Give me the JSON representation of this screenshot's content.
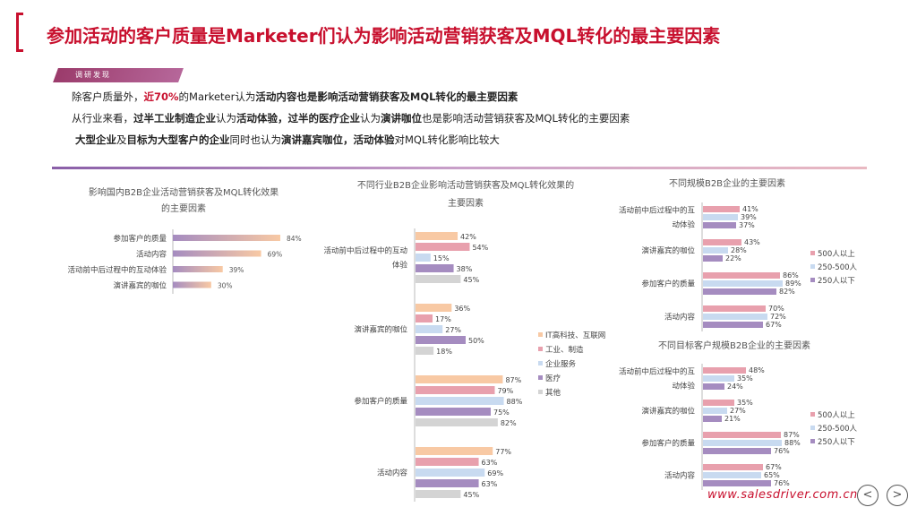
{
  "title": "参加活动的客户质量是Marketer们认为影响活动营销获客及MQL转化的最主要因素",
  "badge": "调研发现",
  "intro": {
    "l1a": "除客户质量外，",
    "l1b": "近70%",
    "l1c": "的Marketer认为",
    "l1d": "活动内容也是影响活动营销获客及MQL转化的最主要因素",
    "l2a": "从行业来看，",
    "l2b": "过半工业制造企业",
    "l2c": "认为",
    "l2d": "活动体验",
    "l2e": "，",
    "l2f": "过半的医疗企业",
    "l2g": "认为",
    "l2h": "演讲咖位",
    "l2i": "也是影响活动营销获客及MQL转化的主要因素",
    "l3a": "大型企业",
    "l3b": "及",
    "l3c": "目标为大型客户的企业",
    "l3d": "同时也认为",
    "l3e": "演讲嘉宾咖位，活动体验",
    "l3f": "对MQL转化影响比较大"
  },
  "footer_url": "www.salesdriver.com.cn",
  "nav": {
    "prev": "<",
    "next": ">"
  },
  "colors": {
    "title_red": "#c8102e",
    "purple": "#a58cc0",
    "pink": "#e8a0ad",
    "light_blue": "#c8daf0",
    "peach": "#f8c9a4",
    "gray": "#d4d4d4"
  },
  "chart_data": [
    {
      "type": "bar",
      "orientation": "horizontal",
      "title": [
        "影响国内B2B企业活动营销获客及MQL转化效果",
        "的主要因素"
      ],
      "categories": [
        "参加客户的质量",
        "活动内容",
        "活动前中后过程中的互动体验",
        "演讲嘉宾的咖位"
      ],
      "values": [
        84,
        69,
        39,
        30
      ],
      "value_labels": [
        "84%",
        "69%",
        "39%",
        "30%"
      ]
    },
    {
      "type": "bar",
      "orientation": "horizontal",
      "title": [
        "不同行业B2B企业影响活动营销获客及MQL转化效果的",
        "主要因素"
      ],
      "categories": [
        [
          "活动前中后过程中的互动",
          "体验"
        ],
        [
          "演讲嘉宾的咖位"
        ],
        [
          "参加客户的质量"
        ],
        [
          "活动内容"
        ]
      ],
      "series": [
        {
          "name": "IT高科技、互联网",
          "color": "#f8c9a4",
          "values": [
            42,
            36,
            87,
            77
          ]
        },
        {
          "name": "工业、制造",
          "color": "#e8a0ad",
          "values": [
            54,
            17,
            79,
            63
          ]
        },
        {
          "name": "企业服务",
          "color": "#c8daf0",
          "values": [
            15,
            27,
            88,
            69
          ]
        },
        {
          "name": "医疗",
          "color": "#a58cc0",
          "values": [
            38,
            50,
            75,
            63
          ]
        },
        {
          "name": "其他",
          "color": "#d4d4d4",
          "values": [
            45,
            18,
            82,
            45
          ]
        }
      ],
      "legend": "right"
    },
    {
      "type": "bar",
      "orientation": "horizontal",
      "title": [
        "不同规模B2B企业的主要因素"
      ],
      "categories": [
        [
          "活动前中后过程中的互",
          "动体验"
        ],
        [
          "演讲嘉宾的咖位"
        ],
        [
          "参加客户的质量"
        ],
        [
          "活动内容"
        ]
      ],
      "series": [
        {
          "name": "500人以上",
          "color": "#e8a0ad",
          "values": [
            41,
            43,
            86,
            70
          ]
        },
        {
          "name": "250-500人",
          "color": "#c8daf0",
          "values": [
            39,
            28,
            89,
            72
          ]
        },
        {
          "name": "250人以下",
          "color": "#a58cc0",
          "values": [
            37,
            22,
            82,
            67
          ]
        }
      ],
      "legend": "right"
    },
    {
      "type": "bar",
      "orientation": "horizontal",
      "title": [
        "不同目标客户规模B2B企业的主要因素"
      ],
      "categories": [
        [
          "活动前中后过程中的互",
          "动体验"
        ],
        [
          "演讲嘉宾的咖位"
        ],
        [
          "参加客户的质量"
        ],
        [
          "活动内容"
        ]
      ],
      "series": [
        {
          "name": "500人以上",
          "color": "#e8a0ad",
          "values": [
            48,
            35,
            87,
            67
          ]
        },
        {
          "name": "250-500人",
          "color": "#c8daf0",
          "values": [
            35,
            27,
            88,
            65
          ]
        },
        {
          "name": "250人以下",
          "color": "#a58cc0",
          "values": [
            24,
            21,
            76,
            76
          ]
        }
      ],
      "legend": "right"
    }
  ]
}
